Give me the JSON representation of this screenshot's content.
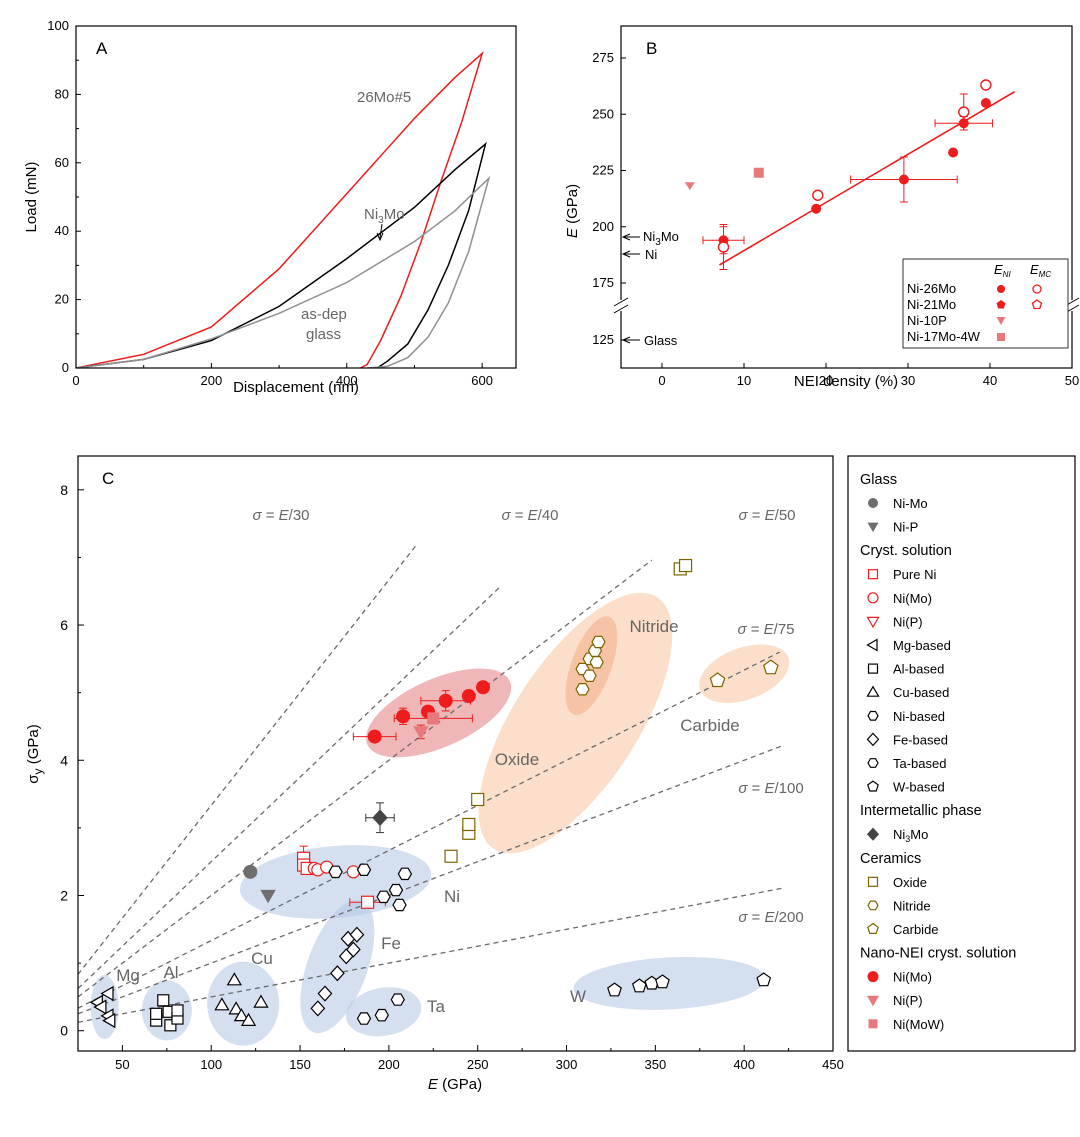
{
  "colors": {
    "red": "#ee1c1c",
    "gray": "#6e6e6e",
    "tan": "#7a6400",
    "pink": "#e8787c",
    "orange_fill": "#f9c9a7",
    "blue_fill": "#b8c9e6",
    "red_fill": "#e27b7b"
  },
  "chart_data": [
    {
      "panel": "A",
      "type": "line",
      "xlabel": "Displacement (nm)",
      "ylabel": "Load (mN)",
      "xlim": [
        0,
        650
      ],
      "ylim": [
        0,
        100
      ],
      "xticks": [
        "0",
        "200",
        "400",
        "600"
      ],
      "yticks": [
        "0",
        "20",
        "40",
        "60",
        "80",
        "100"
      ],
      "series": [
        {
          "name": "26Mo#5",
          "color": "#ee1c1c",
          "loading": [
            [
              0,
              0
            ],
            [
              100,
              4
            ],
            [
              200,
              12
            ],
            [
              300,
              29
            ],
            [
              400,
              51
            ],
            [
              500,
              73
            ],
            [
              560,
              85
            ],
            [
              600,
              92
            ]
          ],
          "unloading": [
            [
              600,
              92
            ],
            [
              570,
              72
            ],
            [
              540,
              55
            ],
            [
              510,
              37
            ],
            [
              480,
              21
            ],
            [
              450,
              8
            ],
            [
              430,
              1
            ],
            [
              420,
              0
            ]
          ]
        },
        {
          "name": "Ni3Mo",
          "color": "#000000",
          "loading": [
            [
              0,
              0
            ],
            [
              100,
              2.5
            ],
            [
              200,
              8
            ],
            [
              300,
              18
            ],
            [
              400,
              32
            ],
            [
              500,
              47
            ],
            [
              560,
              58
            ],
            [
              605,
              65.5
            ]
          ],
          "unloading": [
            [
              605,
              65.5
            ],
            [
              580,
              46
            ],
            [
              550,
              30
            ],
            [
              520,
              17
            ],
            [
              490,
              7
            ],
            [
              460,
              2
            ],
            [
              445,
              0
            ]
          ]
        },
        {
          "name": "as-dep glass",
          "color": "#909090",
          "loading": [
            [
              0,
              0
            ],
            [
              100,
              2.5
            ],
            [
              200,
              8.5
            ],
            [
              300,
              16
            ],
            [
              400,
              25
            ],
            [
              500,
              37
            ],
            [
              560,
              46
            ],
            [
              610,
              55.5
            ]
          ],
          "unloading": [
            [
              610,
              55.5
            ],
            [
              580,
              34
            ],
            [
              550,
              19
            ],
            [
              520,
              9
            ],
            [
              490,
              3
            ],
            [
              460,
              0.5
            ],
            [
              430,
              0
            ]
          ]
        }
      ],
      "annotations": [
        "26Mo#5",
        "Ni3Mo",
        "as-dep",
        "glass"
      ]
    },
    {
      "panel": "B",
      "type": "scatter",
      "xlabel": "NEI density (%)",
      "ylabel": "E (GPa)",
      "xlim": [
        -5,
        50
      ],
      "xticks": [
        "0",
        "10",
        "20",
        "30",
        "40",
        "50"
      ],
      "yticks": [
        "125",
        "175",
        "200",
        "225",
        "250",
        "275"
      ],
      "fit_line": [
        [
          7,
          183
        ],
        [
          43,
          260
        ]
      ],
      "points": [
        {
          "series": "Ni-26Mo",
          "kind": "E_NI",
          "x": 7.5,
          "y": 194,
          "xerr": 2.5,
          "yerr": 6
        },
        {
          "series": "Ni-26Mo",
          "kind": "E_NI",
          "x": 18.8,
          "y": 208
        },
        {
          "series": "Ni-26Mo",
          "kind": "E_NI",
          "x": 29.5,
          "y": 221,
          "xerr": 6.5,
          "yerr": 10
        },
        {
          "series": "Ni-26Mo",
          "kind": "E_NI",
          "x": 35.5,
          "y": 233
        },
        {
          "series": "Ni-26Mo",
          "kind": "E_NI",
          "x": 36.8,
          "y": 246,
          "xerr": 3.5,
          "yerr": 3
        },
        {
          "series": "Ni-26Mo",
          "kind": "E_NI",
          "x": 39.5,
          "y": 255
        },
        {
          "series": "Ni-26Mo",
          "kind": "E_MC",
          "x": 7.5,
          "y": 191,
          "yerr": 10
        },
        {
          "series": "Ni-26Mo",
          "kind": "E_MC",
          "x": 19,
          "y": 214
        },
        {
          "series": "Ni-26Mo",
          "kind": "E_MC",
          "x": 36.8,
          "y": 251,
          "yerr": 8
        },
        {
          "series": "Ni-26Mo",
          "kind": "E_MC",
          "x": 39.5,
          "y": 263
        },
        {
          "series": "Ni-10P",
          "kind": "E_NI",
          "x": 3.4,
          "y": 218
        },
        {
          "series": "Ni-17Mo-4W",
          "kind": "E_NI",
          "x": 11.8,
          "y": 224
        }
      ],
      "reference_labels": [
        {
          "label": "Ni3Mo",
          "y": 195
        },
        {
          "label": "Ni",
          "y": 188
        },
        {
          "label": "Glass",
          "y": 122
        }
      ],
      "legend": {
        "headers": [
          "E_NI",
          "E_MC"
        ],
        "rows": [
          "Ni-26Mo",
          "Ni-21Mo",
          "Ni-10P",
          "Ni-17Mo-4W"
        ]
      }
    },
    {
      "panel": "C",
      "type": "scatter",
      "xlabel": "E (GPa)",
      "ylabel": "σy (GPa)",
      "xlim": [
        25,
        450
      ],
      "ylim": [
        -0.3,
        8.5
      ],
      "xticks": [
        "50",
        "100",
        "150",
        "200",
        "250",
        "300",
        "350",
        "400",
        "450"
      ],
      "yticks": [
        "0",
        "2",
        "4",
        "6",
        "8"
      ],
      "guide_lines": [
        {
          "label": "σ = E/30",
          "divisor": 30
        },
        {
          "label": "σ = E/40",
          "divisor": 40
        },
        {
          "label": "σ = E/50",
          "divisor": 50
        },
        {
          "label": "σ = E/75",
          "divisor": 75
        },
        {
          "label": "σ = E/100",
          "divisor": 100
        },
        {
          "label": "σ = E/200",
          "divisor": 200
        }
      ],
      "regions": [
        "Mg",
        "Al",
        "Cu",
        "Fe",
        "Ta",
        "Ni",
        "W",
        "Oxide",
        "Nitride",
        "Carbide"
      ],
      "series": [
        {
          "name": "Ni-Mo glass",
          "points": [
            [
              122,
              2.35
            ]
          ]
        },
        {
          "name": "Ni-P glass",
          "points": [
            [
              132,
              2.0
            ]
          ]
        },
        {
          "name": "Pure Ni",
          "points": [
            [
              152,
              2.55
            ],
            [
              152,
              2.45
            ],
            [
              154,
              2.4
            ],
            [
              188,
              1.9
            ]
          ]
        },
        {
          "name": "Ni(Mo)",
          "points": [
            [
              158,
              2.4
            ],
            [
              160,
              2.38
            ],
            [
              165,
              2.42
            ],
            [
              180,
              2.35
            ]
          ]
        },
        {
          "name": "Mg-based",
          "points": [
            [
              36,
              0.42
            ],
            [
              38,
              0.35
            ],
            [
              42,
              0.55
            ],
            [
              42,
              0.22
            ],
            [
              43,
              0.15
            ]
          ]
        },
        {
          "name": "Al-based",
          "points": [
            [
              69,
              0.15
            ],
            [
              69,
              0.25
            ],
            [
              73,
              0.45
            ],
            [
              76,
              0.28
            ],
            [
              77,
              0.08
            ],
            [
              81,
              0.18
            ],
            [
              81,
              0.3
            ]
          ]
        },
        {
          "name": "Cu-based",
          "points": [
            [
              106,
              0.38
            ],
            [
              113,
              0.75
            ],
            [
              114,
              0.32
            ],
            [
              117,
              0.22
            ],
            [
              121,
              0.15
            ],
            [
              128,
              0.42
            ]
          ]
        },
        {
          "name": "Ni-based",
          "points": [
            [
              170,
              2.35
            ],
            [
              186,
              2.38
            ],
            [
              197,
              1.98
            ],
            [
              204,
              2.08
            ],
            [
              206,
              1.86
            ],
            [
              209,
              2.32
            ]
          ]
        },
        {
          "name": "Fe-based",
          "points": [
            [
              160,
              0.33
            ],
            [
              164,
              0.55
            ],
            [
              171,
              0.85
            ],
            [
              176,
              1.1
            ],
            [
              177,
              1.36
            ],
            [
              180,
              1.2
            ],
            [
              182,
              1.42
            ]
          ]
        },
        {
          "name": "Ta-based",
          "points": [
            [
              186,
              0.18
            ],
            [
              196,
              0.23
            ],
            [
              205,
              0.46
            ]
          ]
        },
        {
          "name": "W-based",
          "points": [
            [
              327,
              0.6
            ],
            [
              341,
              0.66
            ],
            [
              348,
              0.7
            ],
            [
              354,
              0.72
            ],
            [
              411,
              0.75
            ]
          ]
        },
        {
          "name": "Ni3Mo",
          "points": [
            [
              195,
              3.15
            ]
          ]
        },
        {
          "name": "Oxide",
          "points": [
            [
              235,
              2.58
            ],
            [
              245,
              2.92
            ],
            [
              245,
              3.05
            ],
            [
              250,
              3.42
            ],
            [
              364,
              6.83
            ],
            [
              367,
              6.88
            ]
          ]
        },
        {
          "name": "Nitride",
          "points": [
            [
              309,
              5.05
            ],
            [
              309,
              5.35
            ],
            [
              313,
              5.25
            ],
            [
              313,
              5.5
            ],
            [
              316,
              5.62
            ],
            [
              317,
              5.45
            ],
            [
              318,
              5.75
            ]
          ]
        },
        {
          "name": "Carbide",
          "points": [
            [
              385,
              5.18
            ],
            [
              415,
              5.37
            ]
          ]
        },
        {
          "name": "Nano Ni(Mo)",
          "points": [
            [
              192,
              4.35
            ],
            [
              208,
              4.65
            ],
            [
              222,
              4.72
            ],
            [
              232,
              4.88
            ],
            [
              245,
              4.95
            ],
            [
              253,
              5.08
            ]
          ]
        },
        {
          "name": "Nano Ni(P)",
          "points": [
            [
              218,
              4.42
            ]
          ]
        },
        {
          "name": "Nano Ni(MoW)",
          "points": [
            [
              225,
              4.62
            ]
          ]
        }
      ],
      "legend": {
        "sections": [
          {
            "title": "Glass",
            "items": [
              "Ni-Mo",
              "Ni-P"
            ]
          },
          {
            "title": "Cryst. solution",
            "items": [
              "Pure Ni",
              "Ni(Mo)",
              "Ni(P)",
              "Mg-based",
              "Al-based",
              "Cu-based",
              "Ni-based",
              "Fe-based",
              "Ta-based",
              "W-based"
            ]
          },
          {
            "title": "Intermetallic phase",
            "items": [
              "Ni3Mo"
            ]
          },
          {
            "title": "Ceramics",
            "items": [
              "Oxide",
              "Nitride",
              "Carbide"
            ]
          },
          {
            "title": "Nano-NEI cryst. solution",
            "items": [
              "Ni(Mo)",
              "Ni(P)",
              "Ni(MoW)"
            ]
          }
        ]
      }
    }
  ],
  "labels": {
    "panel_a": "A",
    "panel_b": "B",
    "panel_c": "C",
    "a_xlabel": "Displacement (nm)",
    "a_ylabel": "Load (mN)",
    "a_26mo": "26Mo#5",
    "a_ni3mo_main": "Ni",
    "a_ni3mo_sub": "3",
    "a_ni3mo_tail": "Mo",
    "a_asdep": "as-dep",
    "a_glass": "glass",
    "b_xlabel": "NEI density (%)",
    "b_ylabel_e": "E",
    "b_ylabel_rest": " (GPa)",
    "b_ref_ni3mo_main": "Ni",
    "b_ref_ni3mo_sub": "3",
    "b_ref_ni3mo_tail": "Mo",
    "b_ref_ni": "Ni",
    "b_ref_glass": "Glass",
    "b_leg_eni": "E",
    "b_leg_eni_sub": "NI",
    "b_leg_emc": "E",
    "b_leg_emc_sub": "MC",
    "b_leg_1": "Ni-26Mo",
    "b_leg_2": "Ni-21Mo",
    "b_leg_3": "Ni-10P",
    "b_leg_4": "Ni-17Mo-4W",
    "c_xlabel_e": "E",
    "c_xlabel_rest": " (GPa)",
    "c_ylabel_main": "σ",
    "c_ylabel_sub": "y",
    "c_ylabel_rest": " (GPa)"
  }
}
